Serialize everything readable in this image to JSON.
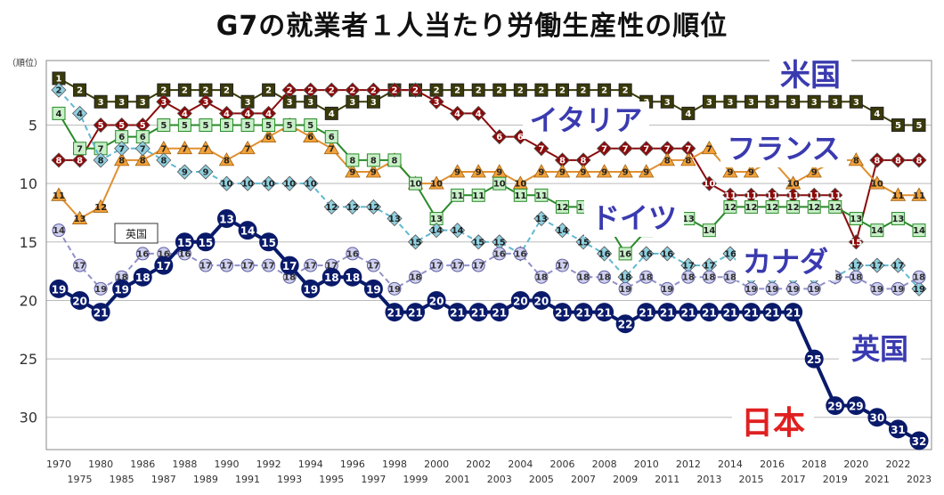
{
  "chart_data": {
    "type": "line",
    "title": "G7の就業者１人当たり労働生産性の順位",
    "ylabel": "（順位）",
    "ylim": [
      1,
      32
    ],
    "yticks": [
      5,
      10,
      15,
      20,
      25,
      30
    ],
    "y_inverted": true,
    "grid": true,
    "legend": "inline labels",
    "x": [
      1970,
      1975,
      1980,
      1985,
      1986,
      1987,
      1988,
      1989,
      1990,
      1991,
      1992,
      1993,
      1994,
      1995,
      1996,
      1997,
      1998,
      1999,
      2000,
      2001,
      2002,
      2003,
      2004,
      2005,
      2006,
      2007,
      2008,
      2009,
      2010,
      2011,
      2012,
      2013,
      2014,
      2015,
      2016,
      2017,
      2018,
      2019,
      2020,
      2021,
      2022,
      2023
    ],
    "x_tick_labels_top": [
      "1970",
      "1980",
      "1986",
      "1988",
      "1990",
      "1992",
      "1994",
      "1996",
      "1998",
      "2000",
      "2002",
      "2004",
      "2006",
      "2008",
      "2010",
      "2012",
      "2014",
      "2016",
      "2018",
      "2020",
      "2022"
    ],
    "x_tick_labels_bottom": [
      "1975",
      "1985",
      "1987",
      "1989",
      "1991",
      "1993",
      "1995",
      "1997",
      "1999",
      "2001",
      "2003",
      "2005",
      "2007",
      "2009",
      "2011",
      "2013",
      "2015",
      "2017",
      "2019",
      "2021",
      "2023"
    ],
    "series": [
      {
        "name": "米国",
        "color": "#3a3a0a",
        "marker": "square",
        "label_color": "#3a3ab0",
        "values": [
          1,
          2,
          3,
          3,
          3,
          2,
          2,
          2,
          2,
          3,
          2,
          3,
          3,
          4,
          3,
          3,
          2,
          2,
          2,
          2,
          2,
          2,
          2,
          2,
          2,
          2,
          2,
          2,
          3,
          3,
          4,
          3,
          3,
          3,
          3,
          3,
          3,
          3,
          3,
          4,
          5,
          5
        ]
      },
      {
        "name": "フランス",
        "color": "#8b0a0a",
        "marker": "diamond",
        "label_color": "#3a3ab0",
        "values": [
          8,
          8,
          5,
          5,
          5,
          3,
          4,
          3,
          4,
          4,
          4,
          2,
          2,
          2,
          2,
          2,
          2,
          2,
          3,
          4,
          4,
          6,
          6,
          7,
          8,
          8,
          7,
          7,
          7,
          7,
          7,
          10,
          11,
          11,
          11,
          11,
          11,
          11,
          15,
          8,
          8,
          8
        ]
      },
      {
        "name": "イタリア",
        "color": "#e09030",
        "marker": "triangle",
        "label_color": "#3a3ab0",
        "values": [
          11,
          13,
          12,
          8,
          8,
          7,
          7,
          7,
          8,
          7,
          6,
          5,
          6,
          7,
          9,
          9,
          8,
          10,
          10,
          9,
          9,
          9,
          10,
          9,
          9,
          9,
          9,
          9,
          9,
          8,
          8,
          7,
          9,
          9,
          8,
          10,
          9,
          8,
          8,
          10,
          11,
          11
        ]
      },
      {
        "name": "ドイツ",
        "color": "#2a8a2a",
        "marker": "square",
        "label_color": "#3a3ab0",
        "values": [
          4,
          7,
          7,
          6,
          6,
          5,
          5,
          5,
          5,
          5,
          5,
          5,
          5,
          6,
          8,
          8,
          8,
          10,
          13,
          11,
          11,
          10,
          11,
          11,
          12,
          12,
          13,
          16,
          14,
          13,
          13,
          14,
          12,
          12,
          12,
          12,
          12,
          12,
          13,
          14,
          13,
          14
        ]
      },
      {
        "name": "カナダ",
        "color": "#60b8d0",
        "marker": "diamond",
        "label_color": "#3a3ab0",
        "values": [
          2,
          4,
          8,
          7,
          7,
          8,
          9,
          9,
          10,
          10,
          10,
          10,
          10,
          12,
          12,
          12,
          13,
          15,
          14,
          14,
          15,
          15,
          16,
          13,
          14,
          15,
          16,
          18,
          16,
          16,
          17,
          17,
          16,
          18,
          18,
          18,
          18,
          18,
          17,
          17,
          17,
          19
        ]
      },
      {
        "name": "英国",
        "color": "#9090c8",
        "marker": "circle",
        "label_color": "#3a3ab0",
        "values": [
          14,
          17,
          19,
          18,
          16,
          16,
          16,
          17,
          17,
          17,
          17,
          18,
          17,
          17,
          16,
          17,
          19,
          18,
          17,
          17,
          17,
          16,
          16,
          18,
          17,
          18,
          18,
          19,
          18,
          19,
          18,
          18,
          18,
          19,
          19,
          19,
          19,
          18,
          18,
          19,
          19,
          18
        ]
      },
      {
        "name": "日本",
        "color": "#0a1a6a",
        "marker": "circle",
        "label_color": "#e02020",
        "values": [
          19,
          20,
          21,
          19,
          18,
          17,
          15,
          15,
          13,
          14,
          15,
          17,
          19,
          18,
          18,
          19,
          21,
          21,
          20,
          21,
          21,
          21,
          20,
          20,
          21,
          21,
          21,
          22,
          21,
          21,
          21,
          21,
          21,
          21,
          21,
          21,
          25,
          29,
          29,
          30,
          31,
          32
        ]
      }
    ],
    "uk_small_label": "英国"
  }
}
